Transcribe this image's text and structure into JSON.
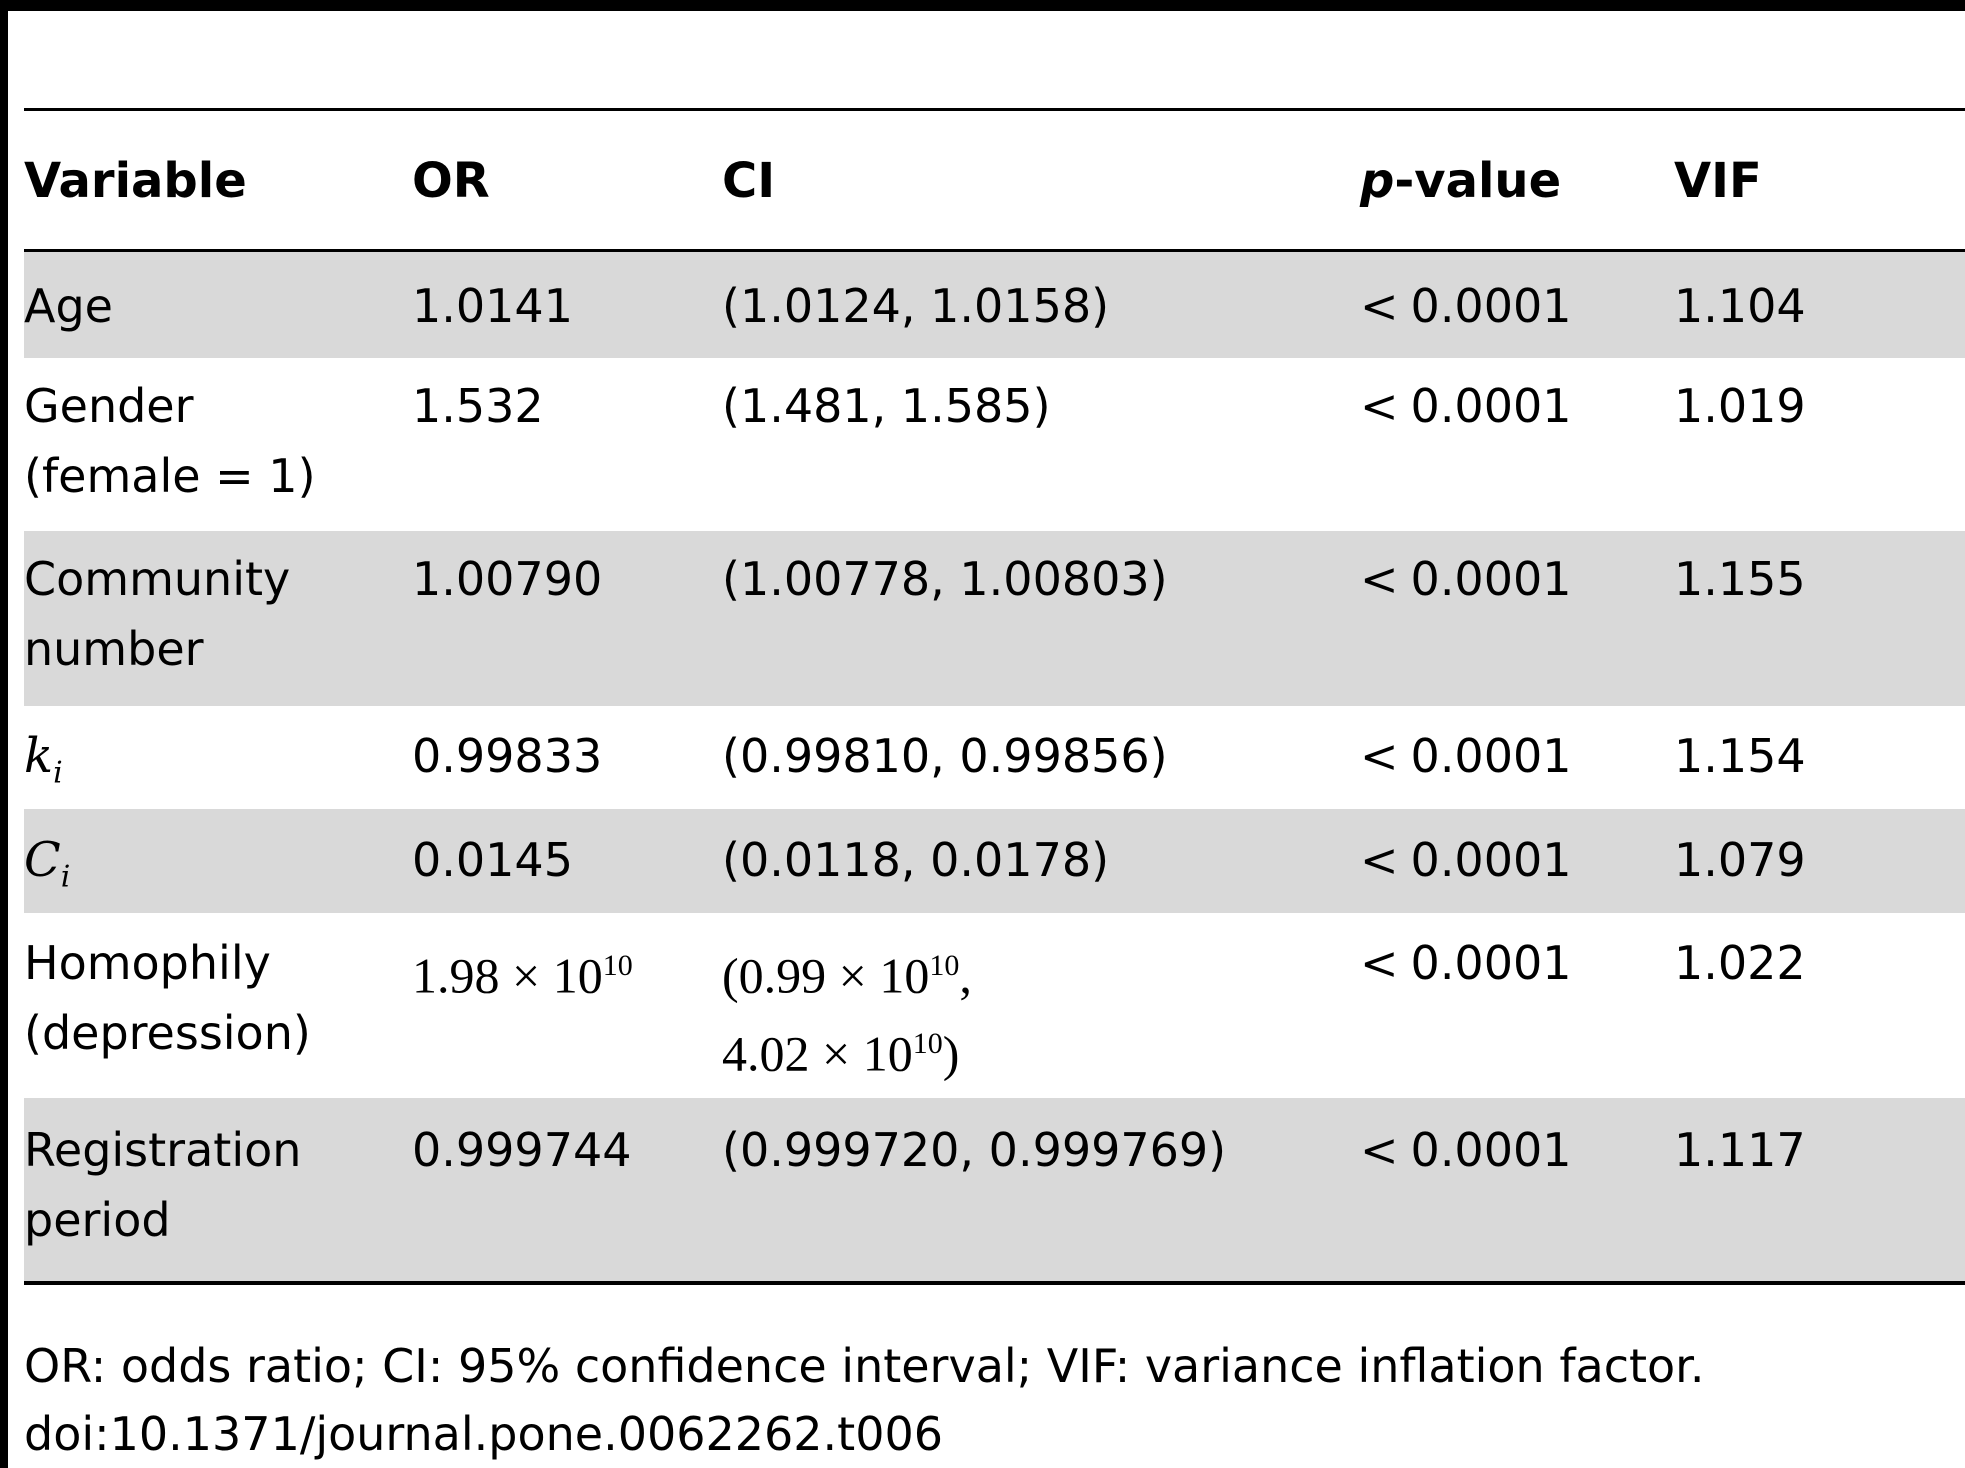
{
  "table": {
    "columns": {
      "variable": "Variable",
      "or": "OR",
      "ci": "CI",
      "p_prefix": "p",
      "p_suffix": "-value",
      "vif": "VIF"
    },
    "rows": [
      {
        "variable": [
          "Age"
        ],
        "or": "1.0141",
        "ci": [
          "(1.0124, 1.0158)"
        ],
        "p": "0.0001",
        "vif": "1.104"
      },
      {
        "variable": [
          "Gender",
          "(female = 1)"
        ],
        "or": "1.532",
        "ci": [
          "(1.481, 1.585)"
        ],
        "p": "0.0001",
        "vif": "1.019"
      },
      {
        "variable": [
          "Community",
          "number"
        ],
        "or": "1.00790",
        "ci": [
          "(1.00778, 1.00803)"
        ],
        "p": "0.0001",
        "vif": "1.155"
      },
      {
        "variable_symbol": "k",
        "variable_sub": "i",
        "or": "0.99833",
        "ci": [
          "(0.99810, 0.99856)"
        ],
        "p": "0.0001",
        "vif": "1.154"
      },
      {
        "variable_symbol": "C",
        "variable_sub": "i",
        "or": "0.0145",
        "ci": [
          "(0.0118, 0.0178)"
        ],
        "p": "0.0001",
        "vif": "1.079"
      },
      {
        "variable": [
          "Homophily",
          "(depression)"
        ],
        "or_mant": "1.98 × 10",
        "or_exp": "10",
        "ci_line1_mant": "(0.99 × 10",
        "ci_line1_exp": "10",
        "ci_line1_tail": ",",
        "ci_line2_mant": "4.02 × 10",
        "ci_line2_exp": "10",
        "ci_line2_tail": ")",
        "p": "0.0001",
        "vif": "1.022"
      },
      {
        "variable": [
          "Registration",
          "period"
        ],
        "or": "0.999744",
        "ci": [
          "(0.999720, 0.999769)"
        ],
        "p": "0.0001",
        "vif": "1.117"
      }
    ],
    "p_operator": "<"
  },
  "footnote": {
    "line1": "OR: odds ratio; CI: 95% confidence interval; VIF: variance inflation factor.",
    "line2": "doi:10.1371/journal.pone.0062262.t006"
  }
}
